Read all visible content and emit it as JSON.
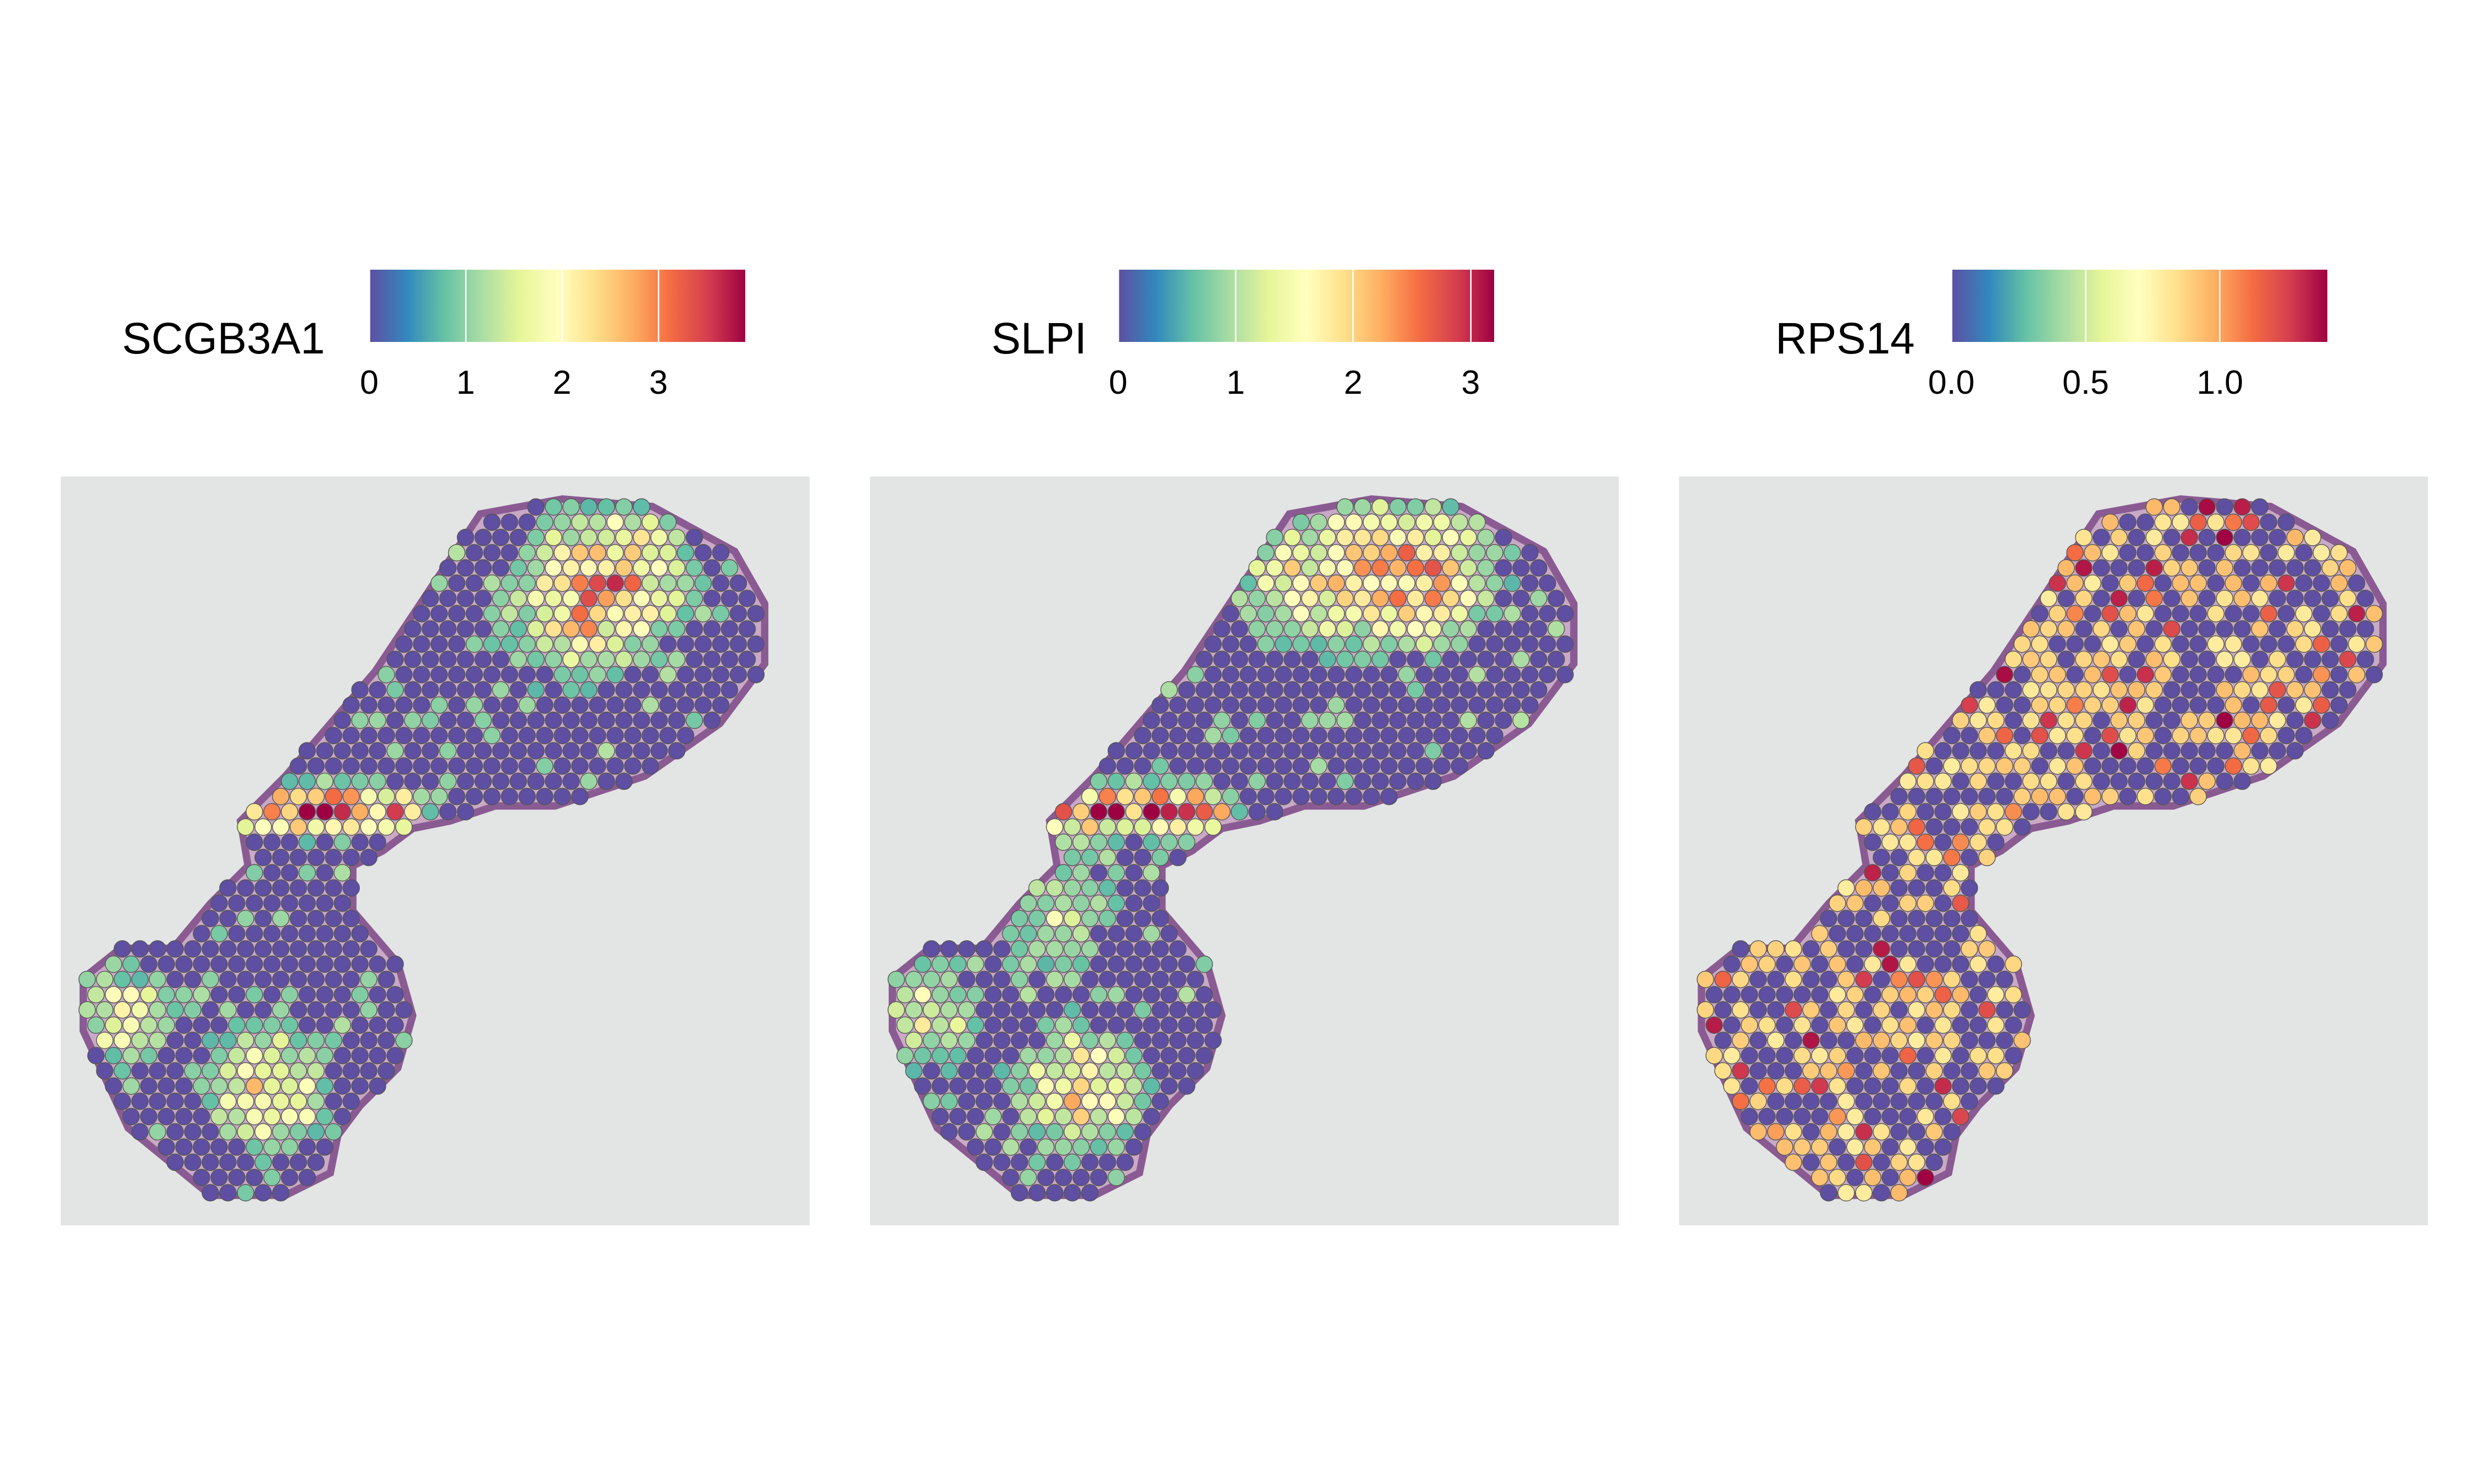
{
  "palette": [
    "#5e4fa2",
    "#3288bd",
    "#66c2a5",
    "#abdda4",
    "#e6f598",
    "#ffffbf",
    "#fee08b",
    "#fdae61",
    "#f46d43",
    "#d53e4f",
    "#9e0142"
  ],
  "panels": [
    {
      "gene": "SCGB3A1",
      "range": [
        0,
        3.9
      ],
      "ticks": [
        {
          "value": 0,
          "label": "0"
        },
        {
          "value": 1,
          "label": "1"
        },
        {
          "value": 2,
          "label": "2"
        },
        {
          "value": 3,
          "label": "3"
        }
      ]
    },
    {
      "gene": "SLPI",
      "range": [
        0,
        3.2
      ],
      "ticks": [
        {
          "value": 0,
          "label": "0"
        },
        {
          "value": 1,
          "label": "1"
        },
        {
          "value": 2,
          "label": "2"
        },
        {
          "value": 3,
          "label": "3"
        }
      ]
    },
    {
      "gene": "RPS14",
      "range": [
        0,
        1.4
      ],
      "ticks": [
        {
          "value": 0,
          "label": "0.0"
        },
        {
          "value": 0.5,
          "label": "0.5"
        },
        {
          "value": 1,
          "label": "1.0"
        }
      ]
    }
  ],
  "chart_data": {
    "type": "scatter",
    "description_kind": "spatial transcriptomics spot expression over tissue image",
    "series": [
      {
        "name": "SCGB3A1",
        "color_range": [
          0,
          3.9
        ],
        "pattern": "low in most spots; high (2–3.9) along airway epithelium lining, upper-right region and lower-left cluster"
      },
      {
        "name": "SLPI",
        "color_range": [
          0,
          3.2
        ],
        "pattern": "low centrally; high (2–3.2) along airway lining, upper border and lower-left cluster"
      },
      {
        "name": "RPS14",
        "color_range": [
          0,
          1.4
        ],
        "pattern": "scattered: most spots 0 or ~0.8–1.0, some 1.1–1.4"
      }
    ]
  }
}
